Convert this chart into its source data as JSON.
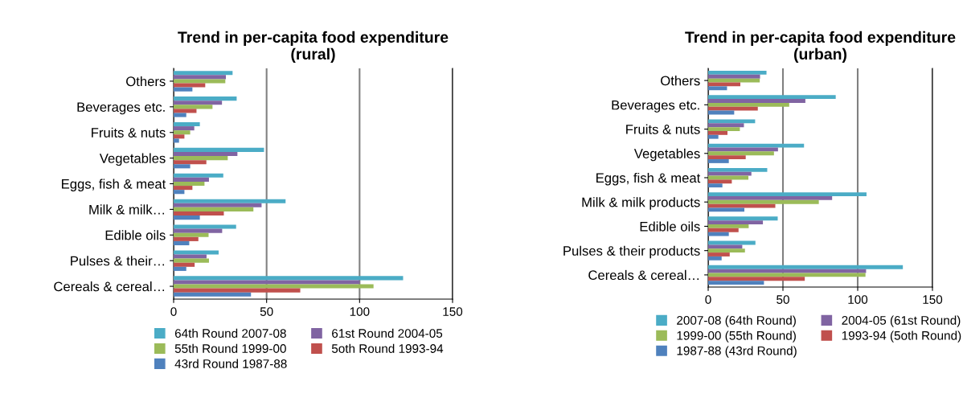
{
  "chart_data": [
    {
      "type": "bar",
      "orientation": "horizontal",
      "title": "Trend in per-capita food expenditure\n(rural)",
      "categories": [
        "Others",
        "Beverages etc.",
        "Fruits & nuts",
        "Vegetables",
        "Eggs, fish & meat",
        "Milk & milk…",
        "Edible oils",
        "Pulses & their…",
        "Cereals & cereal…"
      ],
      "series": [
        {
          "name": "64th Round 2007-08",
          "color": "#4bacc6",
          "values": [
            31.7,
            33.9,
            14.1,
            48.6,
            26.7,
            60.2,
            33.6,
            24.2,
            123.4
          ]
        },
        {
          "name": "61st Round 2004-05",
          "color": "#8064a2",
          "values": [
            28.1,
            26.0,
            11.1,
            34.3,
            19.0,
            47.3,
            26.1,
            17.7,
            100.0
          ]
        },
        {
          "name": "55th Round 1999-00",
          "color": "#9bbb59",
          "values": [
            27.8,
            20.9,
            8.9,
            29.1,
            16.6,
            42.9,
            18.8,
            19.0,
            107.5
          ]
        },
        {
          "name": "5oth Round 1993-94",
          "color": "#c0504d",
          "values": [
            17.0,
            12.3,
            5.8,
            17.6,
            10.1,
            27.0,
            13.3,
            11.3,
            68.1
          ]
        },
        {
          "name": "43rd Round 1987-88",
          "color": "#4f81bd",
          "values": [
            10.1,
            6.8,
            2.9,
            8.9,
            5.8,
            14.1,
            8.4,
            6.8,
            41.6
          ]
        }
      ],
      "xlim": [
        0,
        150
      ],
      "xticks": [
        0,
        50,
        100,
        150
      ],
      "grid": "x",
      "legend": "bottom"
    },
    {
      "type": "bar",
      "orientation": "horizontal",
      "title": "Trend in per-capita food expenditure\n(urban)",
      "categories": [
        "Others",
        "Beverages etc.",
        "Fruits & nuts",
        "Vegetables",
        "Eggs, fish & meat",
        "Milk & milk products",
        "Edible oils",
        "Pulses & their products",
        "Cereals & cereal…"
      ],
      "series": [
        {
          "name": "2007-08 (64th Round)",
          "color": "#4bacc6",
          "values": [
            39.0,
            85.3,
            31.4,
            64.1,
            39.5,
            105.9,
            46.5,
            31.6,
            130.2
          ]
        },
        {
          "name": "2004-05 (61st Round)",
          "color": "#8064a2",
          "values": [
            34.7,
            65.0,
            23.9,
            46.7,
            28.9,
            82.9,
            36.6,
            22.8,
            105.6
          ]
        },
        {
          "name": "1999-00 (55th Round)",
          "color": "#9bbb59",
          "values": [
            34.5,
            54.2,
            21.2,
            44.0,
            26.9,
            74.0,
            27.1,
            24.6,
            105.2
          ]
        },
        {
          "name": "1993-94 (5oth Round)",
          "color": "#c0504d",
          "values": [
            21.5,
            33.2,
            12.9,
            25.1,
            15.8,
            44.9,
            20.3,
            14.4,
            64.6
          ]
        },
        {
          "name": "1987-88 (43rd Round)",
          "color": "#4f81bd",
          "values": [
            12.6,
            17.4,
            6.8,
            13.8,
            9.5,
            24.2,
            13.8,
            9.0,
            37.3
          ]
        }
      ],
      "xlim": [
        0,
        150
      ],
      "xticks": [
        0,
        50,
        100,
        150
      ],
      "grid": "x",
      "legend": "bottom"
    }
  ]
}
